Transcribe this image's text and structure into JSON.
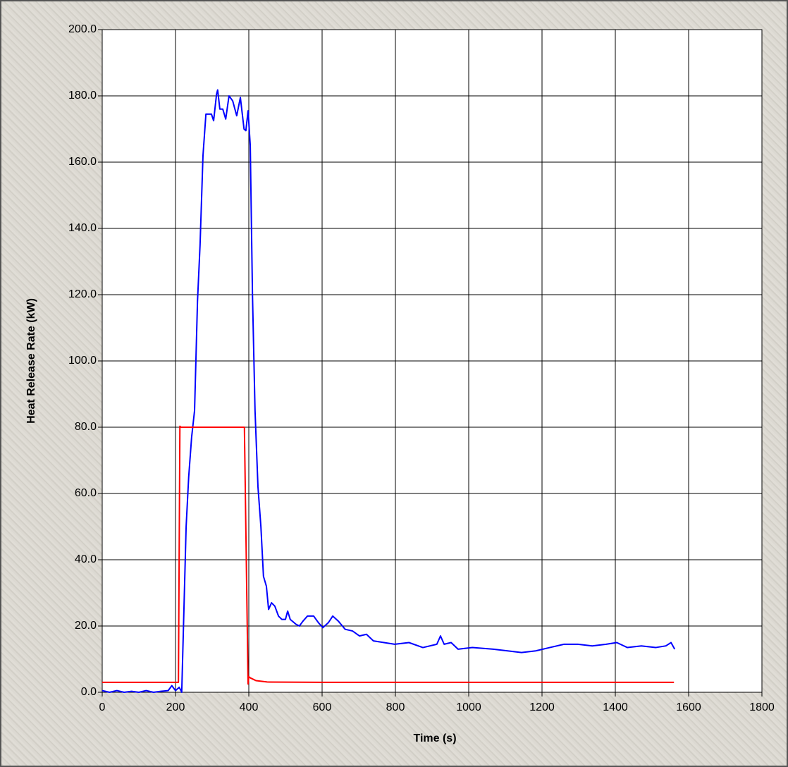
{
  "chart_data": {
    "type": "line",
    "x_label": "Time (s)",
    "y_label": "Heat Release Rate (kW)",
    "xlim": [
      0,
      1800
    ],
    "xticks": [
      0,
      200,
      400,
      600,
      800,
      1000,
      1200,
      1400,
      1600,
      1800
    ],
    "ylim": [
      0,
      200
    ],
    "yticks": [
      {
        "value": 0,
        "label": "0.0"
      },
      {
        "value": 20,
        "label": "20.0"
      },
      {
        "value": 40,
        "label": "40.0"
      },
      {
        "value": 60,
        "label": "60.0"
      },
      {
        "value": 80,
        "label": "80.0"
      },
      {
        "value": 100,
        "label": "100.0"
      },
      {
        "value": 120,
        "label": "120.0"
      },
      {
        "value": 140,
        "label": "140.0"
      },
      {
        "value": 160,
        "label": "160.0"
      },
      {
        "value": 180,
        "label": "180.0"
      },
      {
        "value": 200,
        "label": "200.0"
      }
    ],
    "grid": true,
    "series": [
      {
        "color": "#0000ff",
        "x": [
          0,
          20,
          40,
          60,
          80,
          100,
          120,
          140,
          160,
          180,
          190,
          200,
          210,
          215,
          217,
          229,
          236,
          244,
          252,
          260,
          267,
          275,
          283,
          298,
          304,
          312,
          315,
          321,
          329,
          337,
          346,
          356,
          367,
          377,
          387,
          392,
          398,
          404,
          410,
          417,
          425,
          433,
          440,
          448,
          454,
          462,
          471,
          481,
          490,
          500,
          506,
          513,
          529,
          538,
          548,
          560,
          577,
          590,
          602,
          617,
          629,
          644,
          663,
          683,
          702,
          721,
          740,
          769,
          798,
          837,
          875,
          913,
          923,
          933,
          952,
          971,
          1010,
          1067,
          1106,
          1144,
          1183,
          1221,
          1260,
          1298,
          1337,
          1375,
          1404,
          1433,
          1471,
          1510,
          1538,
          1552,
          1562
        ],
        "values": [
          0.5,
          0,
          0.5,
          0,
          0.3,
          0,
          0.5,
          0,
          0.3,
          0.5,
          2,
          0.5,
          1.5,
          0.5,
          0,
          50,
          65,
          77,
          85,
          118,
          135,
          162,
          174.5,
          174.5,
          172.5,
          180.5,
          181.8,
          176,
          176,
          173,
          180,
          178.5,
          174,
          179.5,
          170,
          169.5,
          175.5,
          165,
          120,
          85,
          62,
          50,
          35,
          32,
          25,
          27,
          26,
          23,
          22,
          22,
          24.5,
          22,
          20.5,
          20,
          21.5,
          23,
          23,
          21,
          19.5,
          21,
          23,
          21.5,
          19,
          18.5,
          17,
          17.5,
          15.5,
          15,
          14.5,
          15,
          13.5,
          14.5,
          17,
          14.5,
          15,
          13,
          13.5,
          13,
          12.5,
          12,
          12.5,
          13.5,
          14.5,
          14.5,
          14,
          14.5,
          15,
          13.5,
          14,
          13.5,
          14,
          15,
          13
        ]
      },
      {
        "color": "#ff0000",
        "x": [
          0,
          100,
          200,
          208,
          212,
          215,
          300,
          388,
          398,
          400,
          405,
          420,
          450,
          600,
          1000,
          1560
        ],
        "values": [
          3,
          3,
          3,
          3,
          80.3,
          80,
          80,
          80,
          2.5,
          4.7,
          4.3,
          3.5,
          3.1,
          3,
          3,
          3
        ]
      }
    ]
  }
}
